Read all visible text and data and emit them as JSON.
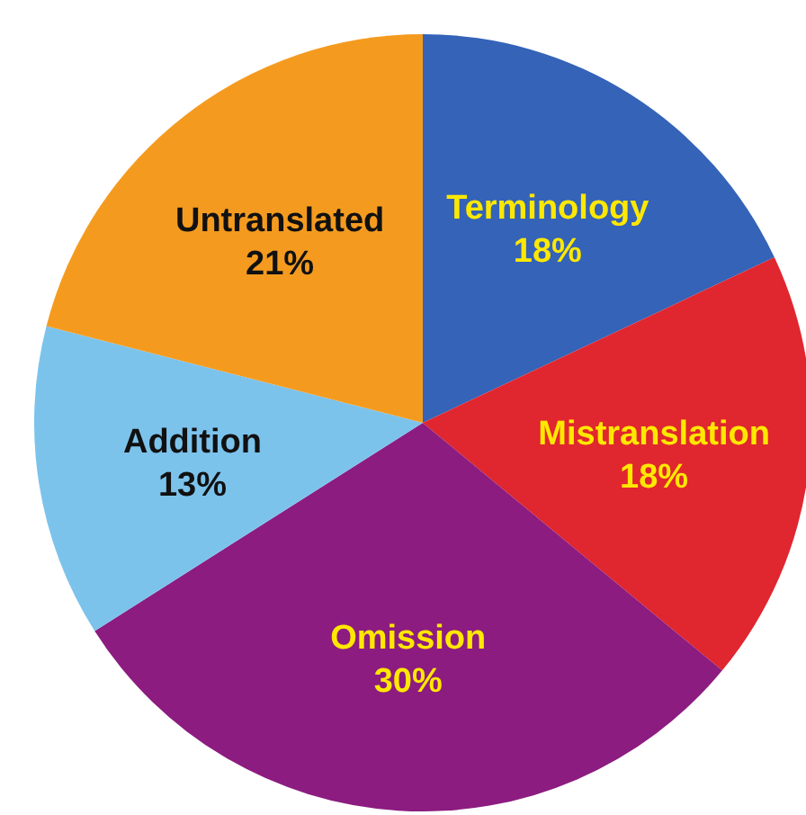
{
  "chart_data": {
    "type": "pie",
    "categories": [
      "Terminology",
      "Mistranslation",
      "Omission",
      "Addition",
      "Untranslated"
    ],
    "values": [
      18,
      18,
      30,
      13,
      21
    ],
    "value_labels": [
      "18%",
      "18%",
      "30%",
      "13%",
      "21%"
    ],
    "colors": [
      "#3463b8",
      "#e0262f",
      "#8c1c80",
      "#7cc3ec",
      "#f49b1f"
    ],
    "legend": false
  }
}
